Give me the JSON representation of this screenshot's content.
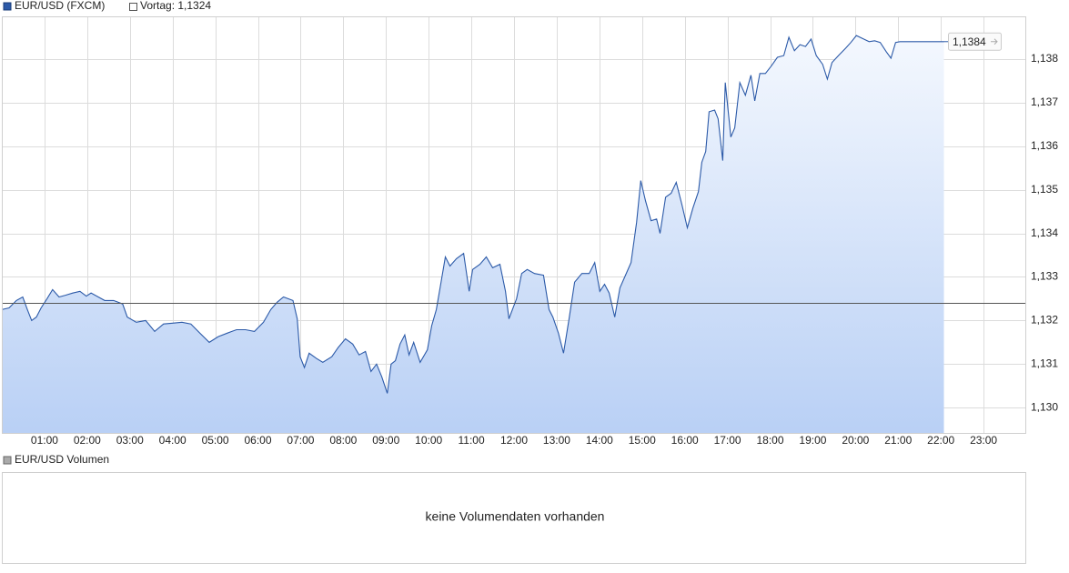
{
  "chart_data": {
    "type": "area",
    "series": [
      {
        "name": "EUR/USD (FXCM)",
        "color": "#2c5aa8",
        "x": [
          0.0,
          0.17,
          0.34,
          0.49,
          0.6,
          0.7,
          0.81,
          0.92,
          1.06,
          1.19,
          1.34,
          1.49,
          1.66,
          1.83,
          1.98,
          2.09,
          2.26,
          2.41,
          2.62,
          2.83,
          2.94,
          3.15,
          3.37,
          3.58,
          3.79,
          4.0,
          4.22,
          4.43,
          4.64,
          4.86,
          5.07,
          5.28,
          5.5,
          5.71,
          5.92,
          6.13,
          6.3,
          6.45,
          6.6,
          6.82,
          6.92,
          6.99,
          7.09,
          7.2,
          7.37,
          7.52,
          7.73,
          7.88,
          8.05,
          8.22,
          8.37,
          8.52,
          8.65,
          8.78,
          8.9,
          9.03,
          9.12,
          9.22,
          9.33,
          9.44,
          9.54,
          9.65,
          9.8,
          9.97,
          10.07,
          10.18,
          10.29,
          10.39,
          10.5,
          10.65,
          10.82,
          10.95,
          11.03,
          11.2,
          11.35,
          11.5,
          11.67,
          11.8,
          11.88,
          12.06,
          12.18,
          12.31,
          12.48,
          12.69,
          12.82,
          12.91,
          13.04,
          13.16,
          13.29,
          13.42,
          13.59,
          13.76,
          13.89,
          14.01,
          14.12,
          14.23,
          14.36,
          14.48,
          14.61,
          14.74,
          14.87,
          14.97,
          15.08,
          15.21,
          15.34,
          15.42,
          15.55,
          15.68,
          15.8,
          15.93,
          16.06,
          16.19,
          16.32,
          16.4,
          16.49,
          16.57,
          16.7,
          16.78,
          16.89,
          16.95,
          17.08,
          17.17,
          17.29,
          17.42,
          17.55,
          17.64,
          17.76,
          17.89,
          18.02,
          18.17,
          18.32,
          18.44,
          18.57,
          18.7,
          18.83,
          18.96,
          19.08,
          19.23,
          19.34,
          19.45,
          19.6,
          19.77,
          19.89,
          20.02,
          20.19,
          20.32,
          20.45,
          20.58,
          20.72,
          20.83,
          20.94,
          21.04,
          21.26,
          22.07
        ],
        "values": [
          1.13225,
          1.13229,
          1.13246,
          1.13254,
          1.13225,
          1.132,
          1.13208,
          1.13229,
          1.1325,
          1.13271,
          1.13254,
          1.13258,
          1.13263,
          1.13267,
          1.13256,
          1.13263,
          1.13254,
          1.13246,
          1.13246,
          1.13238,
          1.13208,
          1.13196,
          1.132,
          1.13175,
          1.13192,
          1.13194,
          1.13196,
          1.13192,
          1.13171,
          1.1315,
          1.13163,
          1.13171,
          1.13179,
          1.13179,
          1.13175,
          1.13196,
          1.13225,
          1.13242,
          1.13254,
          1.13246,
          1.13204,
          1.13117,
          1.13092,
          1.13125,
          1.13113,
          1.13104,
          1.13117,
          1.13138,
          1.13158,
          1.13146,
          1.13121,
          1.13129,
          1.13083,
          1.131,
          1.13071,
          1.13033,
          1.131,
          1.13108,
          1.13146,
          1.13167,
          1.13121,
          1.1315,
          1.13104,
          1.13133,
          1.13188,
          1.13225,
          1.13288,
          1.13346,
          1.13325,
          1.13342,
          1.13354,
          1.13267,
          1.13317,
          1.13329,
          1.13346,
          1.13321,
          1.13329,
          1.13267,
          1.13204,
          1.1325,
          1.13308,
          1.13317,
          1.13308,
          1.13304,
          1.13225,
          1.13208,
          1.13171,
          1.13125,
          1.13204,
          1.13288,
          1.13308,
          1.13308,
          1.13333,
          1.13267,
          1.13283,
          1.13263,
          1.13208,
          1.13275,
          1.13304,
          1.13333,
          1.13425,
          1.13521,
          1.13475,
          1.13429,
          1.13433,
          1.134,
          1.13483,
          1.13492,
          1.13517,
          1.13467,
          1.13413,
          1.13458,
          1.13496,
          1.13563,
          1.13588,
          1.13679,
          1.13683,
          1.13663,
          1.13567,
          1.13746,
          1.13621,
          1.13642,
          1.13746,
          1.13717,
          1.13763,
          1.13704,
          1.13767,
          1.13767,
          1.13783,
          1.13804,
          1.13808,
          1.1385,
          1.13819,
          1.13833,
          1.13829,
          1.13846,
          1.13808,
          1.13788,
          1.13754,
          1.13792,
          1.13808,
          1.13825,
          1.13838,
          1.13854,
          1.13846,
          1.1384,
          1.13842,
          1.13838,
          1.13817,
          1.13802,
          1.13838,
          1.1384,
          1.1384,
          1.1384
        ]
      }
    ],
    "xlim": [
      0,
      24
    ],
    "xticks": [
      {
        "value": 1,
        "label": "01:00"
      },
      {
        "value": 2,
        "label": "02:00"
      },
      {
        "value": 3,
        "label": "03:00"
      },
      {
        "value": 4,
        "label": "04:00"
      },
      {
        "value": 5,
        "label": "05:00"
      },
      {
        "value": 6,
        "label": "06:00"
      },
      {
        "value": 7,
        "label": "07:00"
      },
      {
        "value": 8,
        "label": "08:00"
      },
      {
        "value": 9,
        "label": "09:00"
      },
      {
        "value": 10,
        "label": "10:00"
      },
      {
        "value": 11,
        "label": "11:00"
      },
      {
        "value": 12,
        "label": "12:00"
      },
      {
        "value": 13,
        "label": "13:00"
      },
      {
        "value": 14,
        "label": "14:00"
      },
      {
        "value": 15,
        "label": "15:00"
      },
      {
        "value": 16,
        "label": "16:00"
      },
      {
        "value": 17,
        "label": "17:00"
      },
      {
        "value": 18,
        "label": "18:00"
      },
      {
        "value": 19,
        "label": "19:00"
      },
      {
        "value": 20,
        "label": "20:00"
      },
      {
        "value": 21,
        "label": "21:00"
      },
      {
        "value": 22,
        "label": "22:00"
      },
      {
        "value": 23,
        "label": "23:00"
      }
    ],
    "ylim": [
      1.12942,
      1.13898
    ],
    "yticks": [
      {
        "value": 1.13,
        "label": "1,130"
      },
      {
        "value": 1.131,
        "label": "1,131"
      },
      {
        "value": 1.132,
        "label": "1,132"
      },
      {
        "value": 1.133,
        "label": "1,133"
      },
      {
        "value": 1.134,
        "label": "1,134"
      },
      {
        "value": 1.135,
        "label": "1,135"
      },
      {
        "value": 1.136,
        "label": "1,136"
      },
      {
        "value": 1.137,
        "label": "1,137"
      },
      {
        "value": 1.138,
        "label": "1,138"
      }
    ],
    "grid": true,
    "previous_close": {
      "value": 1.1324,
      "label": "Vortag: 1,1324",
      "color": "#555555"
    },
    "last_value": {
      "value": 1.1384,
      "label": "1,1384"
    }
  },
  "volume_panel": {
    "title": "EUR/USD Volumen",
    "message": "keine Volumendaten vorhanden"
  }
}
